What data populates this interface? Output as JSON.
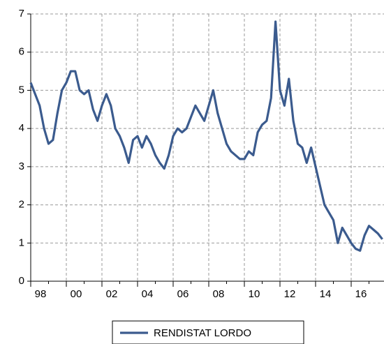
{
  "chart_data": {
    "type": "line",
    "categories": [
      "98",
      null,
      null,
      null,
      null,
      null,
      null,
      null,
      "00",
      null,
      null,
      null,
      null,
      null,
      null,
      null,
      "02",
      null,
      null,
      null,
      null,
      null,
      null,
      null,
      "04",
      null,
      null,
      null,
      null,
      null,
      null,
      null,
      "06",
      null,
      null,
      null,
      null,
      null,
      null,
      null,
      "08",
      null,
      null,
      null,
      null,
      null,
      null,
      null,
      "10",
      null,
      null,
      null,
      null,
      null,
      null,
      null,
      "12",
      null,
      null,
      null,
      null,
      null,
      null,
      null,
      "14",
      null,
      null,
      null,
      null,
      null,
      null,
      null,
      "16",
      null,
      null,
      null,
      null,
      null,
      null,
      null
    ],
    "series": [
      {
        "name": "RENDISTAT LORDO",
        "color": "#3b5b8e",
        "values": [
          5.2,
          4.9,
          4.6,
          4.0,
          3.6,
          3.7,
          4.4,
          5.0,
          5.2,
          5.5,
          5.5,
          5.0,
          4.9,
          5.0,
          4.5,
          4.2,
          4.6,
          4.9,
          4.6,
          4.0,
          3.8,
          3.5,
          3.1,
          3.7,
          3.8,
          3.5,
          3.8,
          3.6,
          3.3,
          3.1,
          2.95,
          3.3,
          3.8,
          4.0,
          3.9,
          4.0,
          4.3,
          4.6,
          4.4,
          4.2,
          4.6,
          5.0,
          4.4,
          4.0,
          3.6,
          3.4,
          3.3,
          3.2,
          3.2,
          3.4,
          3.3,
          3.9,
          4.1,
          4.2,
          4.8,
          6.8,
          5.0,
          4.6,
          5.3,
          4.2,
          3.6,
          3.5,
          3.1,
          3.5,
          3.0,
          2.5,
          2.0,
          1.8,
          1.6,
          1.0,
          1.4,
          1.2,
          1.0,
          0.85,
          0.8,
          1.2,
          1.45,
          1.35,
          1.25,
          1.1
        ]
      }
    ],
    "ylim": [
      0,
      7
    ],
    "yticks": [
      0,
      1,
      2,
      3,
      4,
      5,
      6,
      7
    ],
    "grid": true,
    "legend": "bottom"
  }
}
